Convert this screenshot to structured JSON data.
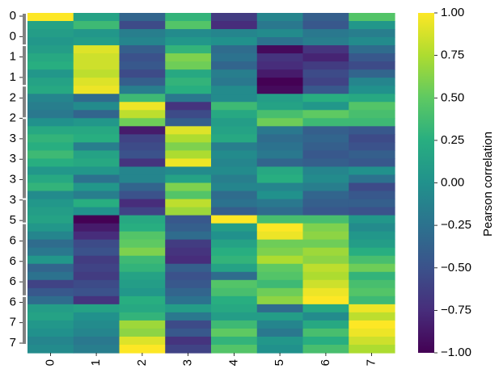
{
  "chart_data": {
    "type": "heatmap",
    "colormap": "viridis",
    "x_labels": [
      "0",
      "1",
      "2",
      "3",
      "4",
      "5",
      "6",
      "7"
    ],
    "row_labels": [
      "0",
      "0",
      "1",
      "1",
      "2",
      "2",
      "3",
      "3",
      "3",
      "3",
      "5",
      "6",
      "6",
      "6",
      "6",
      "7",
      "7"
    ],
    "row_groups": [
      {
        "label": "0",
        "rows": 4
      },
      {
        "label": "1",
        "rows": 5
      },
      {
        "label": "2",
        "rows": 4
      },
      {
        "label": "3",
        "rows": 10
      },
      {
        "label": "5",
        "rows": 3
      },
      {
        "label": "6",
        "rows": 9
      },
      {
        "label": "7",
        "rows": 6
      }
    ],
    "values": [
      [
        1.0,
        0.15,
        -0.35,
        0.3,
        -0.65,
        -0.1,
        -0.4,
        0.45
      ],
      [
        0.15,
        0.35,
        -0.55,
        0.45,
        -0.75,
        -0.2,
        -0.45,
        0.05
      ],
      [
        0.1,
        0.05,
        -0.15,
        -0.05,
        -0.1,
        -0.05,
        -0.2,
        -0.15
      ],
      [
        0.05,
        0.1,
        -0.1,
        0.05,
        0.0,
        -0.25,
        -0.15,
        -0.05
      ],
      [
        0.1,
        0.9,
        -0.4,
        0.3,
        -0.3,
        -0.95,
        -0.7,
        -0.3
      ],
      [
        0.2,
        0.85,
        -0.5,
        0.6,
        -0.25,
        -0.7,
        -0.8,
        -0.45
      ],
      [
        0.25,
        0.85,
        -0.45,
        0.55,
        -0.35,
        -0.75,
        -0.65,
        -0.55
      ],
      [
        0.05,
        0.8,
        -0.55,
        0.2,
        -0.15,
        -0.85,
        -0.55,
        -0.35
      ],
      [
        0.15,
        0.9,
        -0.4,
        0.3,
        -0.2,
        -1.0,
        -0.6,
        -0.1
      ],
      [
        0.2,
        0.95,
        -0.15,
        0.25,
        -0.05,
        -0.95,
        -0.45,
        0.0
      ],
      [
        -0.1,
        -0.3,
        0.35,
        -0.2,
        -0.05,
        0.1,
        0.25,
        0.2
      ],
      [
        -0.15,
        -0.05,
        0.95,
        -0.7,
        0.35,
        0.15,
        0.05,
        0.45
      ],
      [
        -0.2,
        -0.35,
        0.8,
        -0.55,
        0.2,
        0.4,
        0.5,
        0.4
      ],
      [
        0.0,
        0.05,
        0.55,
        -0.4,
        0.1,
        0.55,
        0.35,
        0.35
      ],
      [
        0.2,
        0.2,
        -0.85,
        0.9,
        0.15,
        -0.2,
        -0.4,
        -0.45
      ],
      [
        0.3,
        0.25,
        -0.6,
        0.75,
        0.2,
        -0.3,
        -0.35,
        -0.55
      ],
      [
        0.25,
        -0.15,
        -0.55,
        0.6,
        -0.15,
        -0.25,
        -0.4,
        -0.5
      ],
      [
        0.35,
        0.15,
        -0.5,
        0.75,
        -0.05,
        -0.2,
        -0.45,
        -0.4
      ],
      [
        0.25,
        0.2,
        -0.7,
        0.95,
        -0.1,
        -0.35,
        -0.4,
        -0.45
      ],
      [
        0.05,
        0.05,
        -0.1,
        -0.05,
        -0.05,
        0.2,
        -0.1,
        0.0
      ],
      [
        0.2,
        -0.25,
        -0.1,
        0.15,
        -0.15,
        0.25,
        -0.05,
        -0.25
      ],
      [
        0.3,
        0.05,
        -0.35,
        0.6,
        -0.1,
        -0.1,
        -0.15,
        -0.55
      ],
      [
        -0.05,
        -0.15,
        -0.5,
        0.45,
        -0.3,
        0.0,
        -0.35,
        -0.45
      ],
      [
        0.05,
        0.25,
        -0.75,
        0.8,
        -0.25,
        -0.2,
        -0.4,
        -0.4
      ],
      [
        0.1,
        0.0,
        -0.6,
        0.7,
        -0.4,
        -0.3,
        -0.45,
        -0.5
      ],
      [
        0.15,
        -1.0,
        0.2,
        -0.45,
        1.0,
        0.4,
        0.4,
        0.05
      ],
      [
        0.05,
        -0.85,
        0.25,
        -0.4,
        0.1,
        1.0,
        0.6,
        -0.05
      ],
      [
        -0.1,
        -0.75,
        0.45,
        -0.3,
        0.0,
        0.95,
        0.65,
        0.05
      ],
      [
        -0.3,
        -0.55,
        0.5,
        -0.65,
        0.15,
        0.55,
        0.55,
        0.1
      ],
      [
        -0.2,
        -0.5,
        0.6,
        -0.7,
        0.25,
        0.6,
        0.7,
        0.25
      ],
      [
        0.05,
        -0.65,
        0.35,
        -0.75,
        0.3,
        0.75,
        0.65,
        0.4
      ],
      [
        -0.35,
        -0.6,
        0.3,
        -0.4,
        0.15,
        0.5,
        0.8,
        0.55
      ],
      [
        -0.25,
        -0.65,
        0.15,
        -0.5,
        -0.3,
        0.45,
        0.75,
        0.3
      ],
      [
        -0.6,
        -0.55,
        0.1,
        -0.45,
        0.45,
        0.35,
        0.85,
        0.4
      ],
      [
        -0.45,
        -0.5,
        0.05,
        -0.35,
        0.4,
        0.55,
        0.95,
        0.45
      ],
      [
        -0.3,
        -0.7,
        0.25,
        -0.25,
        0.25,
        0.65,
        1.0,
        0.35
      ],
      [
        0.1,
        0.15,
        0.2,
        0.1,
        0.2,
        -0.3,
        0.2,
        0.95
      ],
      [
        0.15,
        0.0,
        0.3,
        -0.2,
        0.1,
        0.1,
        -0.05,
        0.8
      ],
      [
        0.05,
        -0.05,
        0.7,
        -0.55,
        0.35,
        -0.1,
        0.2,
        1.0
      ],
      [
        0.0,
        -0.1,
        0.65,
        -0.45,
        0.5,
        -0.2,
        0.4,
        0.95
      ],
      [
        -0.1,
        -0.2,
        0.9,
        -0.7,
        0.3,
        0.05,
        0.25,
        0.85
      ],
      [
        -0.05,
        -0.15,
        1.0,
        -0.6,
        0.45,
        0.0,
        0.4,
        0.75
      ]
    ],
    "colorbar": {
      "label": "Pearson correlation",
      "min": -1.0,
      "max": 1.0,
      "ticks": [
        "1.00",
        "0.75",
        "0.50",
        "0.25",
        "0.00",
        "−0.25",
        "−0.50",
        "−0.75",
        "−1.00"
      ]
    }
  }
}
